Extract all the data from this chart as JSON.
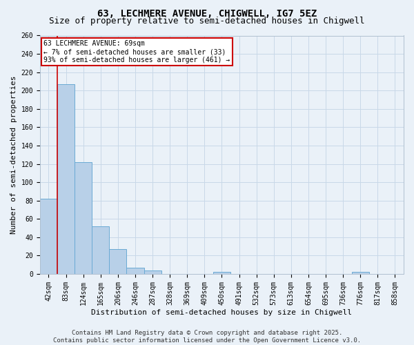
{
  "title": "63, LECHMERE AVENUE, CHIGWELL, IG7 5EZ",
  "subtitle": "Size of property relative to semi-detached houses in Chigwell",
  "xlabel": "Distribution of semi-detached houses by size in Chigwell",
  "ylabel": "Number of semi-detached properties",
  "categories": [
    "42sqm",
    "83sqm",
    "124sqm",
    "165sqm",
    "206sqm",
    "246sqm",
    "287sqm",
    "328sqm",
    "369sqm",
    "409sqm",
    "450sqm",
    "491sqm",
    "532sqm",
    "573sqm",
    "613sqm",
    "654sqm",
    "695sqm",
    "736sqm",
    "776sqm",
    "817sqm",
    "858sqm"
  ],
  "values": [
    82,
    207,
    122,
    52,
    27,
    7,
    4,
    0,
    0,
    0,
    2,
    0,
    0,
    0,
    0,
    0,
    0,
    0,
    2,
    0,
    0
  ],
  "bar_color": "#b8d0e8",
  "bar_edge_color": "#6aaad4",
  "grid_color": "#c8d8e8",
  "background_color": "#eaf1f8",
  "annotation_text": "63 LECHMERE AVENUE: 69sqm\n← 7% of semi-detached houses are smaller (33)\n93% of semi-detached houses are larger (461) →",
  "annotation_box_color": "#ffffff",
  "annotation_box_edge": "#cc0000",
  "ylim": [
    0,
    260
  ],
  "yticks": [
    0,
    20,
    40,
    60,
    80,
    100,
    120,
    140,
    160,
    180,
    200,
    220,
    240,
    260
  ],
  "footer": "Contains HM Land Registry data © Crown copyright and database right 2025.\nContains public sector information licensed under the Open Government Licence v3.0.",
  "title_fontsize": 10,
  "subtitle_fontsize": 9,
  "tick_fontsize": 7,
  "xlabel_fontsize": 8,
  "ylabel_fontsize": 8,
  "footer_fontsize": 6.5,
  "annotation_fontsize": 7
}
